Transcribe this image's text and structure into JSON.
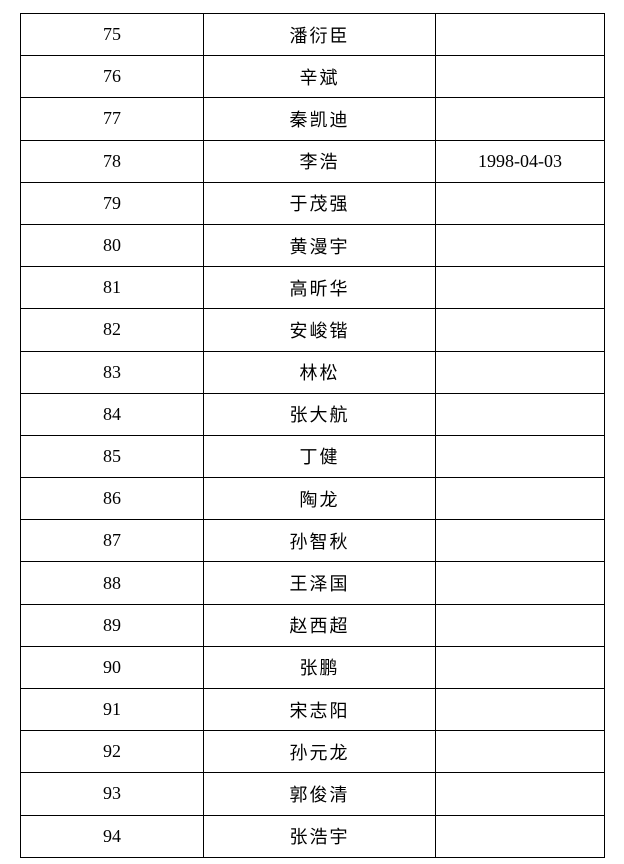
{
  "rows": [
    {
      "no": "75",
      "name": "潘衍臣",
      "date": ""
    },
    {
      "no": "76",
      "name": "辛斌",
      "date": ""
    },
    {
      "no": "77",
      "name": "秦凯迪",
      "date": ""
    },
    {
      "no": "78",
      "name": "李浩",
      "date": "1998-04-03"
    },
    {
      "no": "79",
      "name": "于茂强",
      "date": ""
    },
    {
      "no": "80",
      "name": "黄漫宇",
      "date": ""
    },
    {
      "no": "81",
      "name": "高昕华",
      "date": ""
    },
    {
      "no": "82",
      "name": "安峻锴",
      "date": ""
    },
    {
      "no": "83",
      "name": "林松",
      "date": ""
    },
    {
      "no": "84",
      "name": "张大航",
      "date": ""
    },
    {
      "no": "85",
      "name": "丁健",
      "date": ""
    },
    {
      "no": "86",
      "name": "陶龙",
      "date": ""
    },
    {
      "no": "87",
      "name": "孙智秋",
      "date": ""
    },
    {
      "no": "88",
      "name": "王泽国",
      "date": ""
    },
    {
      "no": "89",
      "name": "赵西超",
      "date": ""
    },
    {
      "no": "90",
      "name": "张鹏",
      "date": ""
    },
    {
      "no": "91",
      "name": "宋志阳",
      "date": ""
    },
    {
      "no": "92",
      "name": "孙元龙",
      "date": ""
    },
    {
      "no": "93",
      "name": "郭俊清",
      "date": ""
    },
    {
      "no": "94",
      "name": "张浩宇",
      "date": ""
    }
  ]
}
